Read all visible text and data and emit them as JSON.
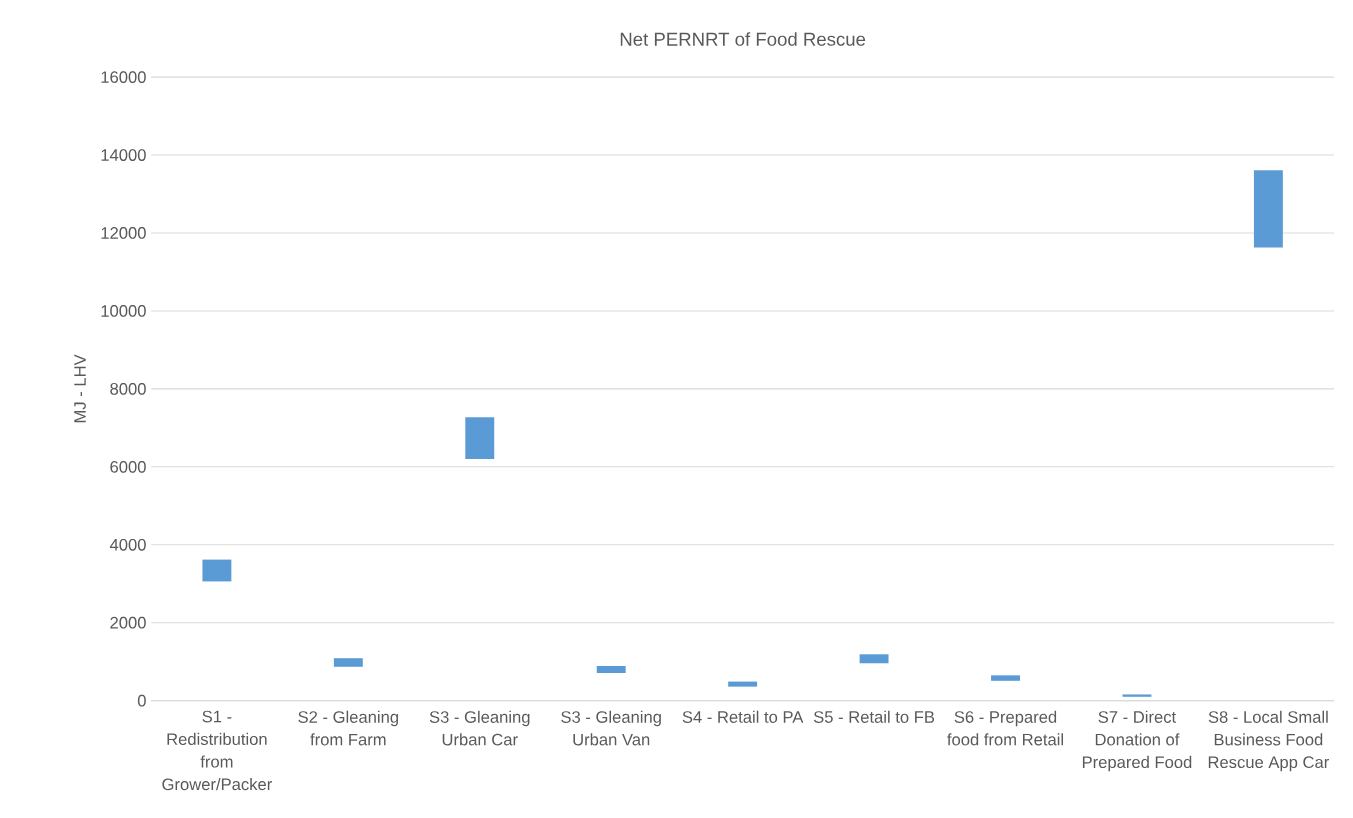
{
  "chart_data": {
    "type": "bar",
    "title": "Net PERNRT of Food Rescue",
    "ylabel": "MJ - LHV",
    "categories": [
      "S1 - Redistribution from Grower/Packer",
      "S2 - Gleaning from Farm",
      "S3 - Gleaning Urban Car",
      "S3 - Gleaning Urban Van",
      "S4 - Retail to PA",
      "S5 - Retail to FB",
      "S6 - Prepared food from Retail",
      "S7 - Direct Donation of Prepared Food",
      "S8 - Local Small Business Food Rescue App Car"
    ],
    "base": [
      3060,
      870,
      6200,
      710,
      360,
      960,
      510,
      100,
      11630
    ],
    "values": [
      560,
      220,
      1070,
      180,
      130,
      230,
      140,
      60,
      1980
    ],
    "color": "#5b9bd5",
    "ylim": [
      0,
      16000
    ],
    "yticks": [
      0,
      2000,
      4000,
      6000,
      8000,
      10000,
      12000,
      14000,
      16000
    ],
    "grid": "y"
  }
}
